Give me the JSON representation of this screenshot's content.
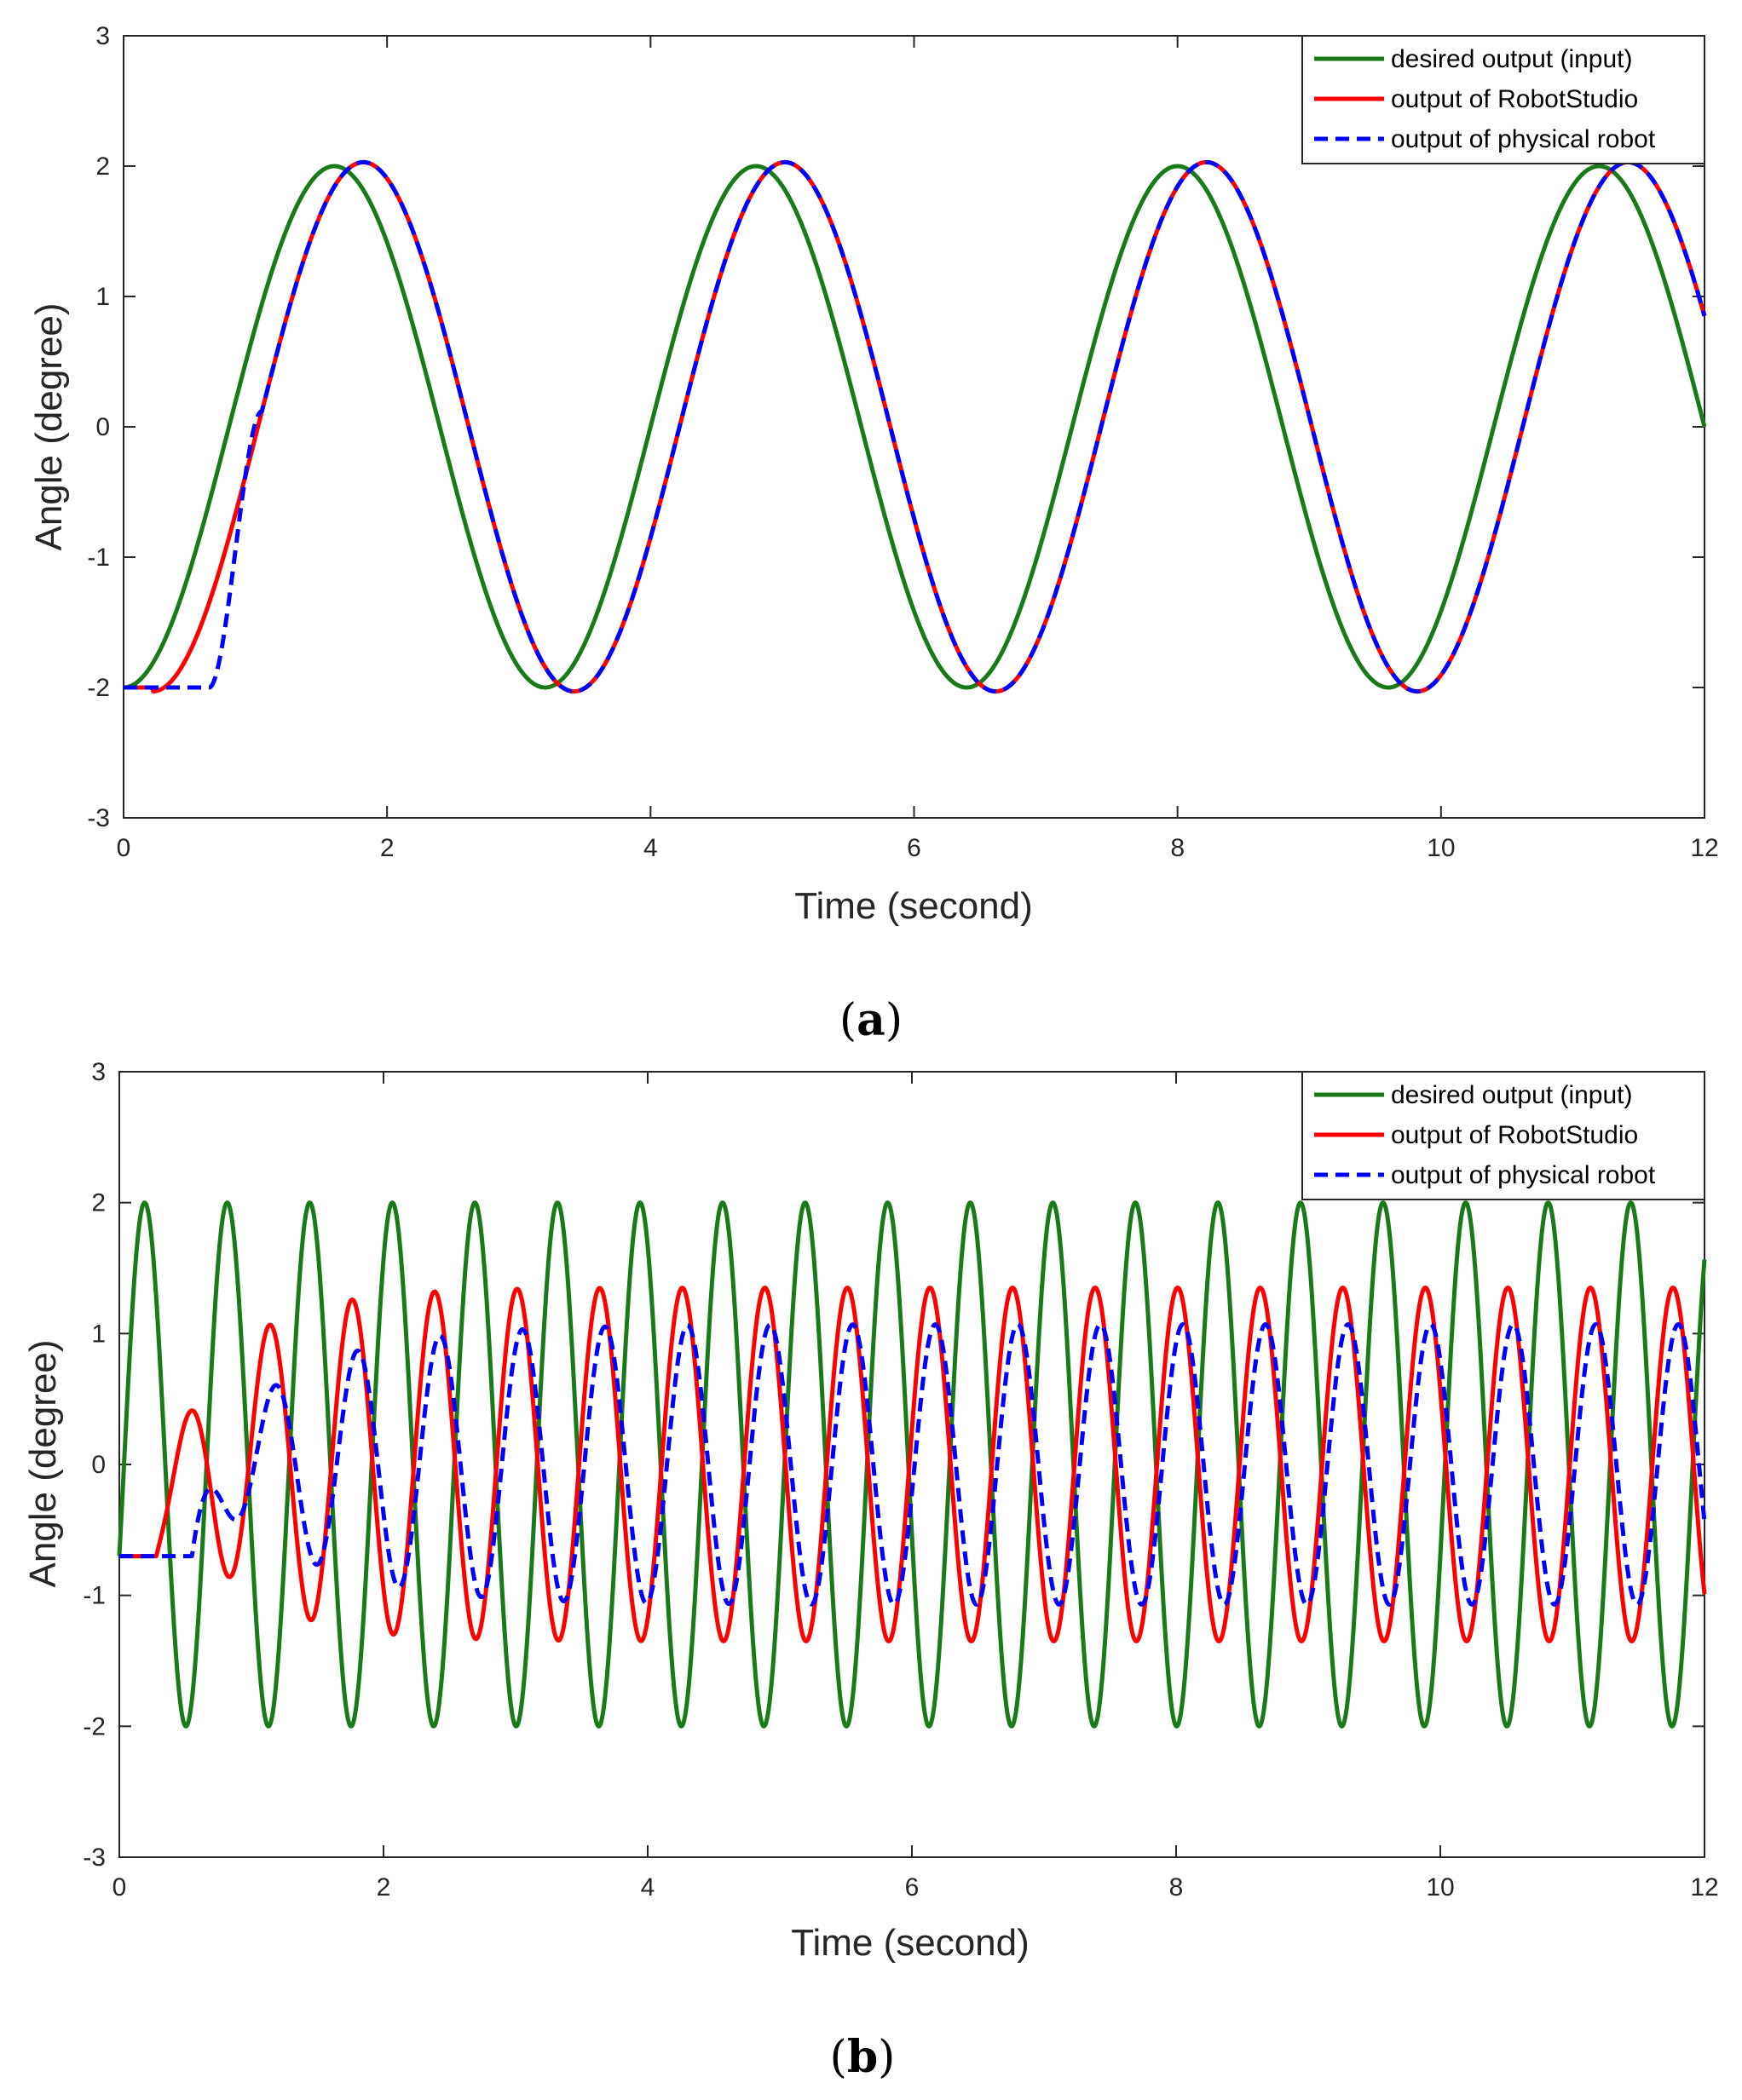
{
  "chart_data": [
    {
      "type": "line",
      "panel": "a",
      "xlabel": "Time (second)",
      "ylabel": "Angle (degree)",
      "xlim": [
        0,
        12
      ],
      "ylim": [
        -3,
        3
      ],
      "xticks": [
        "0",
        "2",
        "4",
        "6",
        "8",
        "10",
        "12"
      ],
      "yticks": [
        "-3",
        "-2",
        "-1",
        "0",
        "1",
        "2",
        "3"
      ],
      "legend_position": "top-right",
      "series": [
        {
          "name": "desired output (input)",
          "color": "#1a7a1a",
          "style": "solid",
          "function": "sine",
          "amplitude": 2,
          "period": 3.2,
          "phase_delay": 0,
          "start_value": -2,
          "hold_until": 0
        },
        {
          "name": "output of RobotStudio",
          "color": "#ff0000",
          "style": "solid",
          "function": "sine",
          "amplitude": 2.03,
          "period": 3.2,
          "phase_delay": 0.22,
          "start_value": -2,
          "hold_until": 0.22
        },
        {
          "name": "output of physical robot",
          "color": "#0000ff",
          "style": "dashed",
          "function": "sine",
          "amplitude": 2.03,
          "period": 3.2,
          "phase_delay": 0.22,
          "start_value": -2,
          "hold_until": 0.65
        }
      ]
    },
    {
      "type": "line",
      "panel": "b",
      "xlabel": "Time (second)",
      "ylabel": "Angle (degree)",
      "xlim": [
        0,
        12
      ],
      "ylim": [
        -3,
        3
      ],
      "xticks": [
        "0",
        "2",
        "4",
        "6",
        "8",
        "10",
        "12"
      ],
      "yticks": [
        "-3",
        "-2",
        "-1",
        "0",
        "1",
        "2",
        "3"
      ],
      "legend_position": "top-right",
      "series": [
        {
          "name": "desired output (input)",
          "color": "#1a7a1a",
          "style": "solid",
          "function": "sine",
          "amplitude": 2,
          "period": 0.625,
          "start_value": -0.7
        },
        {
          "name": "output of RobotStudio",
          "color": "#ff0000",
          "style": "solid",
          "function": "sine",
          "amplitude": 1.35,
          "period": 0.625,
          "start_value": -0.7,
          "hold_until": 0.28
        },
        {
          "name": "output of physical robot",
          "color": "#0000ff",
          "style": "dashed",
          "function": "sine",
          "amplitude": 1.07,
          "period": 0.625,
          "start_value": -0.7,
          "hold_until": 0.55
        }
      ]
    }
  ],
  "panels": {
    "a": {
      "label": "a"
    },
    "b": {
      "label": "b"
    }
  }
}
